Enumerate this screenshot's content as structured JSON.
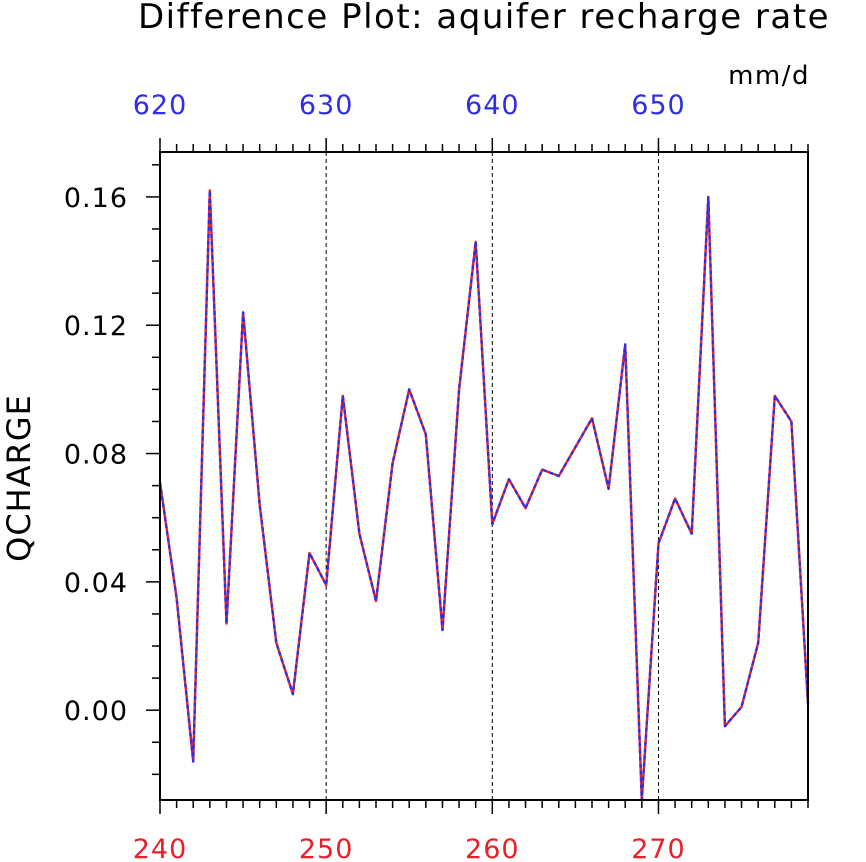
{
  "chart_data": {
    "type": "line",
    "title": "Difference Plot: aquifer recharge rate",
    "units": "mm/d",
    "ylabel": "QCHARGE",
    "xlim": [
      240,
      279
    ],
    "ylim": [
      -0.028,
      0.174
    ],
    "yticks": [
      0.0,
      0.04,
      0.08,
      0.12,
      0.16
    ],
    "ytick_labels": [
      "0.00",
      "0.04",
      "0.08",
      "0.12",
      "0.16"
    ],
    "x_bottom_ticks": [
      240,
      250,
      260,
      270
    ],
    "x_bottom_labels": [
      "240",
      "250",
      "260",
      "270"
    ],
    "x_top_labels": [
      "620",
      "630",
      "640",
      "650"
    ],
    "grid": "vertical dashed at major ticks",
    "colors": {
      "bottom_axis": "#e8202a",
      "top_axis": "#2e2ee6",
      "line_a": "#e8202a",
      "line_b": "#2e2ee6"
    },
    "x": [
      240,
      241,
      242,
      243,
      244,
      245,
      246,
      247,
      248,
      249,
      250,
      251,
      252,
      253,
      254,
      255,
      256,
      257,
      258,
      259,
      260,
      261,
      262,
      263,
      264,
      265,
      266,
      267,
      268,
      269,
      270,
      271,
      272,
      273,
      274,
      275,
      276,
      277,
      278,
      279
    ],
    "series": [
      {
        "values": [
          0.071,
          0.035,
          -0.016,
          0.162,
          0.027,
          0.124,
          0.064,
          0.021,
          0.005,
          0.049,
          0.039,
          0.098,
          0.055,
          0.034,
          0.077,
          0.1,
          0.086,
          0.025,
          0.1,
          0.146,
          0.058,
          0.072,
          0.063,
          0.075,
          0.073,
          0.082,
          0.091,
          0.069,
          0.114,
          -0.028,
          0.052,
          0.066,
          0.055,
          0.16,
          -0.005,
          0.001,
          0.021,
          0.098,
          0.09,
          0.002
        ]
      },
      {
        "values": [
          0.071,
          0.035,
          -0.016,
          0.162,
          0.027,
          0.124,
          0.064,
          0.021,
          0.005,
          0.049,
          0.039,
          0.098,
          0.055,
          0.034,
          0.077,
          0.1,
          0.086,
          0.025,
          0.1,
          0.146,
          0.058,
          0.072,
          0.063,
          0.075,
          0.073,
          0.082,
          0.091,
          0.069,
          0.114,
          -0.028,
          0.052,
          0.066,
          0.055,
          0.16,
          -0.005,
          0.001,
          0.021,
          0.098,
          0.09,
          0.002
        ]
      }
    ]
  }
}
